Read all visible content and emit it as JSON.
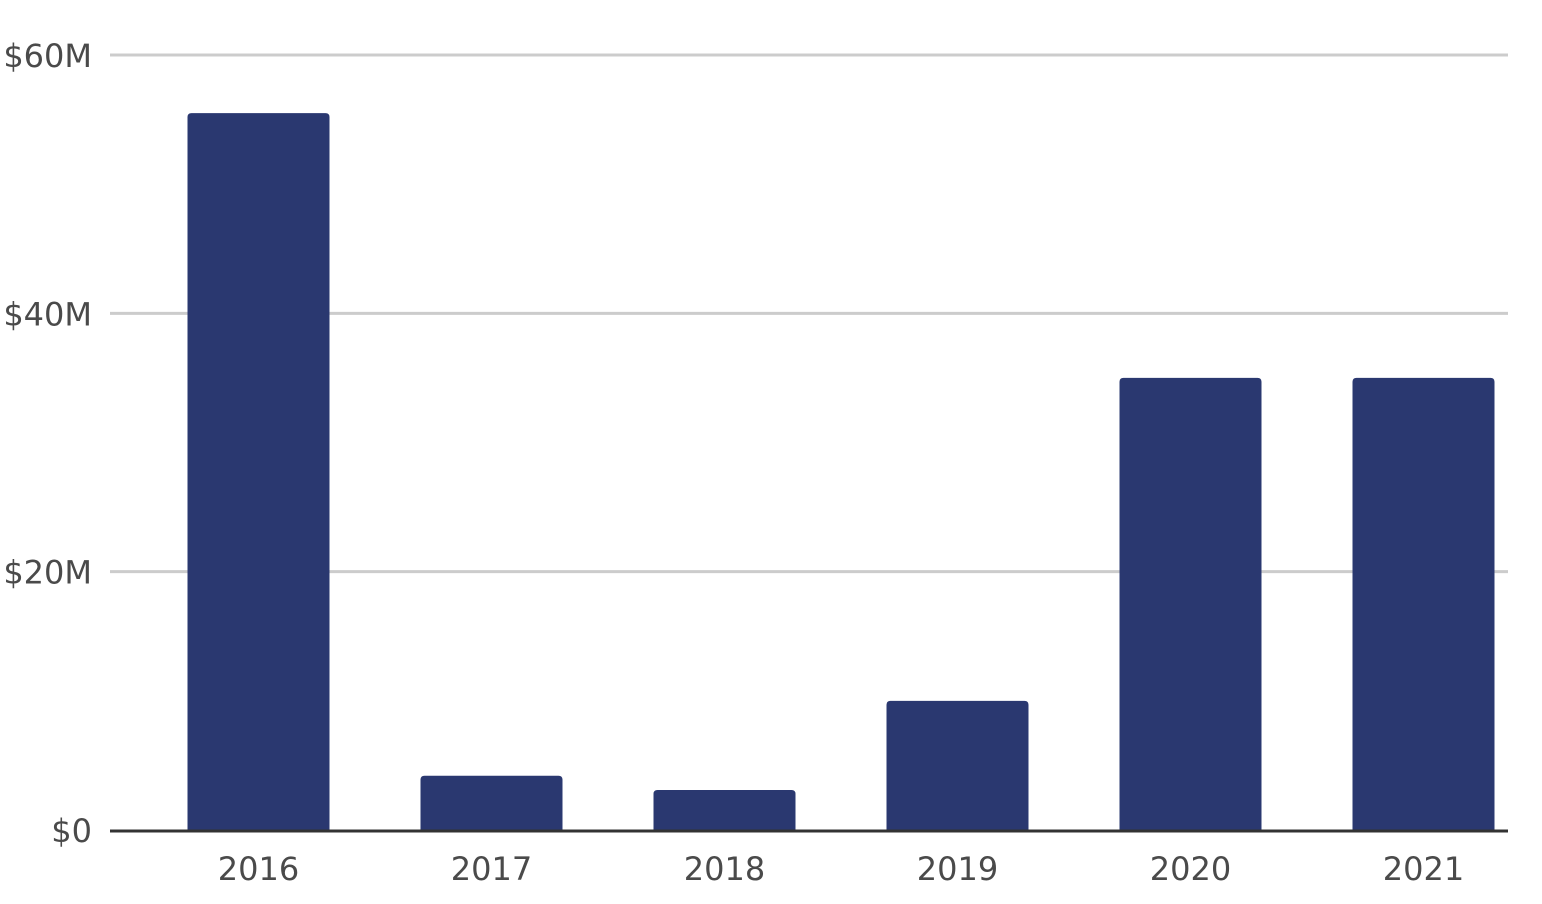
{
  "chart_data": {
    "type": "bar",
    "categories": [
      "2016",
      "2017",
      "2018",
      "2019",
      "2020",
      "2021"
    ],
    "values": [
      55.5,
      4.2,
      3.1,
      10.0,
      35.0,
      35.0
    ],
    "title": "",
    "xlabel": "",
    "ylabel": "",
    "ylim": [
      0,
      60
    ],
    "yticks": [
      0,
      20,
      40,
      60
    ],
    "ytick_labels": [
      "$0",
      "$20M",
      "$40M",
      "$60M"
    ],
    "grid": true,
    "legend": "none",
    "colors": {
      "bar": "#2a3870",
      "grid": "#cccccc",
      "axis": "#333333",
      "text": "#4a4a4a"
    }
  }
}
